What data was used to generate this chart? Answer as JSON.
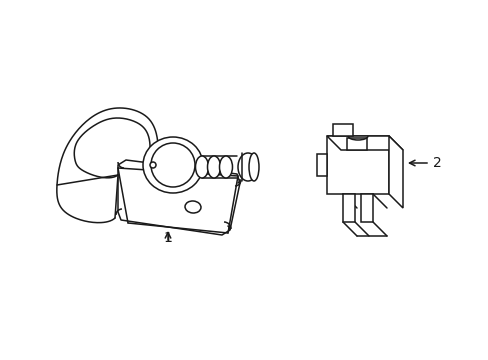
{
  "background_color": "#ffffff",
  "line_color": "#1a1a1a",
  "label1_text": "1",
  "label2_text": "2",
  "fig_width": 4.89,
  "fig_height": 3.6,
  "dpi": 100
}
